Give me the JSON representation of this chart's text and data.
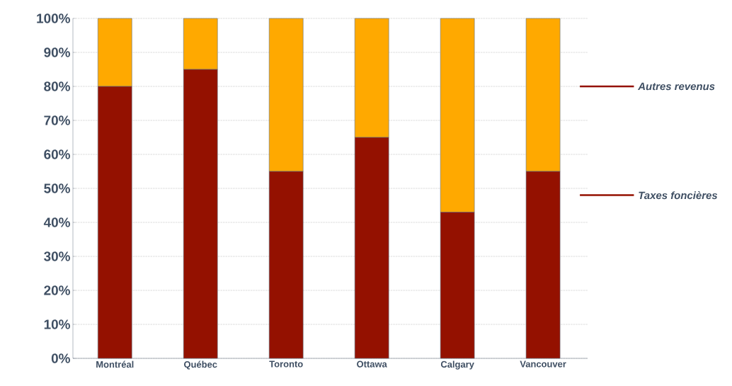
{
  "chart_data": {
    "type": "bar",
    "stacked": true,
    "categories": [
      "Montréal",
      "Québec",
      "Toronto",
      "Ottawa",
      "Calgary",
      "Vancouver"
    ],
    "series": [
      {
        "name": "Taxes foncières",
        "color": "#941100",
        "values": [
          80,
          85,
          55,
          65,
          43,
          55
        ]
      },
      {
        "name": "Autres revenus",
        "color": "#ffa900",
        "values": [
          20,
          15,
          45,
          35,
          57,
          45
        ]
      }
    ],
    "ylim": [
      0,
      100
    ],
    "yticks": [
      {
        "value": 0,
        "label": "0%"
      },
      {
        "value": 10,
        "label": "10%"
      },
      {
        "value": 20,
        "label": "20%"
      },
      {
        "value": 30,
        "label": "30%"
      },
      {
        "value": 40,
        "label": "40%"
      },
      {
        "value": 50,
        "label": "50%"
      },
      {
        "value": 60,
        "label": "60%"
      },
      {
        "value": 70,
        "label": "70%"
      },
      {
        "value": 80,
        "label": "80%"
      },
      {
        "value": 90,
        "label": "90%"
      },
      {
        "value": 100,
        "label": "100%"
      }
    ],
    "grid": "y",
    "legend": "right"
  }
}
